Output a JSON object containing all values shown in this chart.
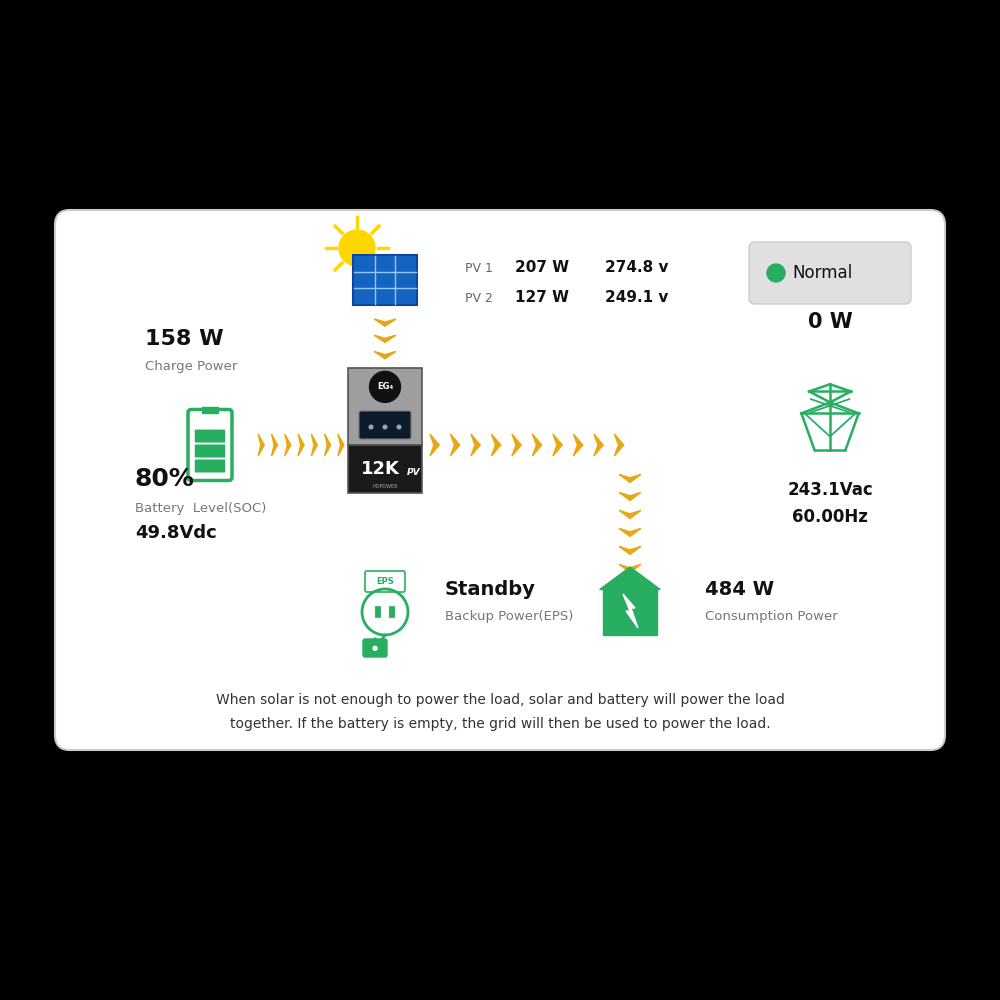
{
  "outer_bg": "#000000",
  "panel_bg": "#ffffff",
  "pv1_label": "PV 1",
  "pv1_power": "207 W",
  "pv1_voltage": "274.8 v",
  "pv2_label": "PV 2",
  "pv2_power": "127 W",
  "pv2_voltage": "249.1 v",
  "normal_label": "Normal",
  "normal_color": "#27ae60",
  "normal_bg": "#e0e0e0",
  "charge_power_label": "Charge Power",
  "charge_power_value": "158 W",
  "battery_pct": "80%",
  "battery_label": "Battery  Level(SOC)",
  "battery_voltage": "49.8Vdc",
  "battery_color": "#27ae60",
  "grid_power": "0 W",
  "grid_voltage": "243.1Vac",
  "grid_freq": "60.00Hz",
  "grid_color": "#27ae60",
  "eps_label": "Standby",
  "eps_sublabel": "Backup Power(EPS)",
  "eps_color": "#27ae60",
  "load_power": "484 W",
  "load_label": "Consumption Power",
  "load_color": "#27ae60",
  "arrow_color": "#e6a817",
  "footer_line1": "When solar is not enough to power the load, solar and battery will power the load",
  "footer_line2": "together. If the battery is empty, the grid will then be used to power the load."
}
